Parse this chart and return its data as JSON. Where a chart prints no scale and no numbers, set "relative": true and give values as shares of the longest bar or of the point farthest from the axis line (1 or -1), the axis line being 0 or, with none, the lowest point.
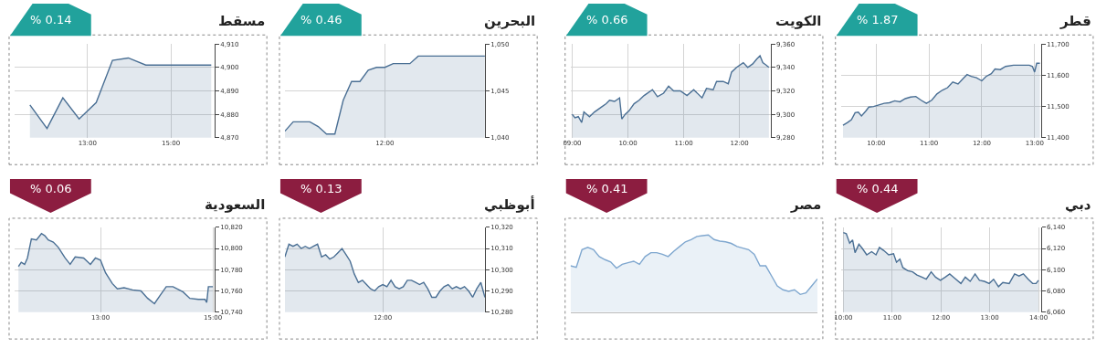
{
  "chart_data": [
    {
      "type": "area",
      "title": "قطر",
      "subtitle": "% 1.87",
      "color": "#4a6f94",
      "grid": true,
      "xlim": [
        9.33,
        13.12
      ],
      "ylim": [
        11400,
        11700
      ],
      "xticks": [
        {
          "value": 10,
          "label": "10:00"
        },
        {
          "value": 11,
          "label": "11:00"
        },
        {
          "value": 12,
          "label": "12:00"
        },
        {
          "value": 13,
          "label": "13:00"
        }
      ],
      "yticks": [
        {
          "value": 11400,
          "label": "11,400"
        },
        {
          "value": 11500,
          "label": "11,500"
        },
        {
          "value": 11600,
          "label": "11,600"
        },
        {
          "value": 11700,
          "label": "11,700"
        }
      ],
      "x": [
        9.37,
        9.45,
        9.53,
        9.6,
        9.66,
        9.72,
        9.8,
        9.86,
        9.95,
        10.05,
        10.15,
        10.25,
        10.35,
        10.45,
        10.55,
        10.65,
        10.75,
        10.85,
        10.95,
        11.05,
        11.15,
        11.25,
        11.35,
        11.45,
        11.55,
        11.65,
        11.72,
        11.8,
        11.9,
        12.0,
        12.08,
        12.18,
        12.25,
        12.35,
        12.45,
        12.6,
        12.75,
        12.9,
        12.96,
        13.0,
        13.04,
        13.1
      ],
      "values": [
        11440,
        11448,
        11458,
        11480,
        11482,
        11470,
        11485,
        11498,
        11500,
        11505,
        11510,
        11512,
        11518,
        11515,
        11525,
        11530,
        11532,
        11520,
        11510,
        11520,
        11540,
        11552,
        11560,
        11578,
        11572,
        11590,
        11602,
        11596,
        11592,
        11582,
        11596,
        11605,
        11620,
        11618,
        11628,
        11632,
        11632,
        11632,
        11628,
        11610,
        11638,
        11638
      ]
    },
    {
      "type": "area",
      "title": "الكويت",
      "subtitle": "% 0.66",
      "color": "#4a6f94",
      "grid": true,
      "xlim": [
        8.97,
        12.56
      ],
      "ylim": [
        9280,
        9360
      ],
      "xticks": [
        {
          "value": 9,
          "label": "09:00"
        },
        {
          "value": 10,
          "label": "10:00"
        },
        {
          "value": 11,
          "label": "11:00"
        },
        {
          "value": 12,
          "label": "12:00"
        }
      ],
      "yticks": [
        {
          "value": 9280,
          "label": "9,280"
        },
        {
          "value": 9300,
          "label": "9,300"
        },
        {
          "value": 9320,
          "label": "9,320"
        },
        {
          "value": 9340,
          "label": "9,340"
        },
        {
          "value": 9360,
          "label": "9,360"
        }
      ],
      "x": [
        9.0,
        9.05,
        9.11,
        9.17,
        9.21,
        9.31,
        9.4,
        9.52,
        9.61,
        9.67,
        9.76,
        9.85,
        9.89,
        9.95,
        10.02,
        10.11,
        10.2,
        10.29,
        10.44,
        10.53,
        10.64,
        10.73,
        10.82,
        10.94,
        11.06,
        11.18,
        11.33,
        11.41,
        11.53,
        11.59,
        11.71,
        11.8,
        11.86,
        11.95,
        12.07,
        12.15,
        12.24,
        12.31,
        12.37,
        12.42,
        12.48,
        12.53
      ],
      "values": [
        9300,
        9297,
        9298,
        9293,
        9302,
        9298,
        9302,
        9306,
        9309,
        9312,
        9311,
        9314,
        9296,
        9300,
        9303,
        9309,
        9312,
        9316,
        9321,
        9315,
        9318,
        9324,
        9320,
        9320,
        9316,
        9321,
        9314,
        9322,
        9321,
        9328,
        9328,
        9326,
        9336,
        9340,
        9344,
        9340,
        9343,
        9347,
        9350,
        9344,
        9342,
        9340
      ]
    },
    {
      "type": "area",
      "title": "البحرين",
      "subtitle": "% 0.46",
      "color": "#4a6f94",
      "grid": true,
      "ylim": [
        1040,
        1050
      ],
      "yticks": [
        {
          "value": 1040,
          "label": "1,040"
        },
        {
          "value": 1045,
          "label": "1,045"
        },
        {
          "value": 1050,
          "label": "1,050"
        }
      ],
      "categories": [
        null,
        null,
        null,
        null,
        null,
        null,
        null,
        null,
        null,
        null,
        null,
        null,
        "12:00",
        null,
        null,
        null,
        null,
        null,
        null,
        null,
        null,
        null,
        null,
        null,
        null
      ],
      "values": [
        1040.7,
        1041.7,
        1041.7,
        1041.7,
        1041.2,
        1040.4,
        1040.4,
        1044.0,
        1046.0,
        1046.0,
        1047.2,
        1047.5,
        1047.5,
        1047.9,
        1047.9,
        1047.9,
        1048.7,
        1048.7,
        1048.7,
        1048.7,
        1048.7,
        1048.7,
        1048.7,
        1048.7,
        1048.7
      ]
    },
    {
      "type": "area",
      "title": "مسقط",
      "subtitle": "% 0.14",
      "color": "#4a6f94",
      "grid": true,
      "xlim": [
        11.25,
        16.05
      ],
      "ylim": [
        4870,
        4910
      ],
      "xticks": [
        {
          "value": 13,
          "label": "13:00"
        },
        {
          "value": 15,
          "label": "15:00"
        }
      ],
      "yticks": [
        {
          "value": 4870,
          "label": "4,870"
        },
        {
          "value": 4880,
          "label": "4,880"
        },
        {
          "value": 4890,
          "label": "4,890"
        },
        {
          "value": 4900,
          "label": "4,900"
        },
        {
          "value": 4910,
          "label": "4,910"
        }
      ],
      "x": [
        11.62,
        12.03,
        12.41,
        12.8,
        13.21,
        13.6,
        13.98,
        14.4,
        15.97
      ],
      "values": [
        4884,
        4874,
        4887,
        4878,
        4885,
        4903,
        4904,
        4901,
        4901
      ]
    },
    {
      "type": "area",
      "title": "دبي",
      "subtitle": "% 0.44",
      "color": "#4a6f94",
      "grid": true,
      "xlim": [
        9.95,
        14.05
      ],
      "ylim": [
        6060,
        6140
      ],
      "xticks": [
        {
          "value": 10,
          "label": "10:00"
        },
        {
          "value": 11,
          "label": "11:00"
        },
        {
          "value": 12,
          "label": "12:00"
        },
        {
          "value": 13,
          "label": "13:00"
        },
        {
          "value": 14,
          "label": "14:00"
        }
      ],
      "yticks": [
        {
          "value": 6060,
          "label": "6,060"
        },
        {
          "value": 6080,
          "label": "6,080"
        },
        {
          "value": 6100,
          "label": "6,100"
        },
        {
          "value": 6120,
          "label": "6,120"
        },
        {
          "value": 6140,
          "label": "6,140"
        }
      ],
      "x": [
        10.0,
        10.06,
        10.13,
        10.19,
        10.24,
        10.32,
        10.39,
        10.48,
        10.58,
        10.67,
        10.74,
        10.83,
        10.93,
        11.03,
        11.09,
        11.16,
        11.22,
        11.32,
        11.42,
        11.51,
        11.61,
        11.7,
        11.8,
        11.89,
        11.99,
        12.09,
        12.18,
        12.28,
        12.41,
        12.5,
        12.6,
        12.7,
        12.79,
        12.89,
        12.99,
        13.08,
        13.18,
        13.27,
        13.4,
        13.51,
        13.6,
        13.69,
        13.79,
        13.88,
        13.95,
        14.0
      ],
      "values": [
        6135,
        6134,
        6125,
        6128,
        6116,
        6124,
        6120,
        6114,
        6117,
        6114,
        6121,
        6118,
        6114,
        6115,
        6107,
        6110,
        6102,
        6099,
        6098,
        6095,
        6093,
        6091,
        6098,
        6093,
        6090,
        6093,
        6096,
        6092,
        6087,
        6093,
        6089,
        6096,
        6090,
        6089,
        6087,
        6091,
        6084,
        6088,
        6087,
        6096,
        6094,
        6096,
        6091,
        6087,
        6087,
        6090
      ]
    },
    {
      "type": "area",
      "title": "مصر",
      "subtitle": "% 0.41",
      "color": "#7fa7cf",
      "relative": true,
      "categories": [
        null,
        null,
        null,
        null,
        null,
        null,
        null,
        null,
        null,
        null,
        null,
        null,
        null,
        null,
        null,
        null,
        null,
        null,
        null,
        null,
        null,
        null,
        null,
        null,
        null,
        null,
        null,
        null,
        null,
        null,
        null,
        null,
        null,
        null,
        null,
        null,
        null,
        null,
        null,
        null,
        null,
        null,
        null,
        null
      ],
      "values": [
        0.6,
        0.58,
        0.81,
        0.84,
        0.81,
        0.72,
        0.68,
        0.65,
        0.57,
        0.62,
        0.64,
        0.66,
        0.62,
        0.72,
        0.77,
        0.77,
        0.75,
        0.72,
        0.79,
        0.85,
        0.91,
        0.94,
        0.98,
        0.99,
        1.0,
        0.94,
        0.92,
        0.91,
        0.89,
        0.85,
        0.83,
        0.81,
        0.75,
        0.6,
        0.6,
        0.47,
        0.34,
        0.29,
        0.27,
        0.29,
        0.23,
        0.25,
        0.34,
        0.43
      ]
    },
    {
      "type": "area",
      "title": "أبوظبي",
      "subtitle": "% 0.13",
      "color": "#4a6f94",
      "grid": true,
      "ylim": [
        10280,
        10320
      ],
      "yticks": [
        {
          "value": 10280,
          "label": "10,280"
        },
        {
          "value": 10290,
          "label": "10,290"
        },
        {
          "value": 10300,
          "label": "10,300"
        },
        {
          "value": 10310,
          "label": "10,310"
        },
        {
          "value": 10320,
          "label": "10,320"
        }
      ],
      "categories": [
        null,
        null,
        null,
        null,
        null,
        null,
        null,
        null,
        null,
        null,
        null,
        null,
        null,
        null,
        null,
        null,
        null,
        null,
        null,
        null,
        null,
        null,
        null,
        null,
        "12:00",
        null,
        null,
        null,
        null,
        null,
        null,
        null,
        null,
        null,
        null,
        null,
        null,
        null,
        null,
        null,
        null,
        null,
        null,
        null,
        null,
        null,
        null,
        null,
        null,
        null
      ],
      "values": [
        10306,
        10312,
        10311,
        10312,
        10310,
        10311,
        10310,
        10311,
        10312,
        10306,
        10307,
        10305,
        10306,
        10308,
        10310,
        10307,
        10304,
        10298,
        10294,
        10295,
        10293,
        10291,
        10290,
        10292,
        10293,
        10292,
        10295,
        10292,
        10291,
        10292,
        10295,
        10295,
        10294,
        10293,
        10294,
        10291,
        10287,
        10287,
        10290,
        10292,
        10293,
        10291,
        10292,
        10291,
        10292,
        10290,
        10287,
        10291,
        10294,
        10287
      ]
    },
    {
      "type": "area",
      "title": "السعودية",
      "subtitle": "% 0.06",
      "color": "#4a6f94",
      "grid": true,
      "xlim": [
        11.47,
        15.03
      ],
      "ylim": [
        10740,
        10820
      ],
      "xticks": [
        {
          "value": 13,
          "label": "13:00"
        },
        {
          "value": 15,
          "label": "15:00"
        }
      ],
      "yticks": [
        {
          "value": 10740,
          "label": "10,740"
        },
        {
          "value": 10760,
          "label": "10,760"
        },
        {
          "value": 10780,
          "label": "10,780"
        },
        {
          "value": 10800,
          "label": "10,800"
        },
        {
          "value": 10820,
          "label": "10,820"
        }
      ],
      "x": [
        11.54,
        11.59,
        11.65,
        11.7,
        11.77,
        11.86,
        11.95,
        12.01,
        12.07,
        12.16,
        12.25,
        12.37,
        12.46,
        12.55,
        12.7,
        12.82,
        12.91,
        13.0,
        13.09,
        13.21,
        13.3,
        13.42,
        13.57,
        13.72,
        13.84,
        13.96,
        14.05,
        14.17,
        14.29,
        14.47,
        14.59,
        14.74,
        14.86,
        14.89,
        14.92,
        15.0
      ],
      "values": [
        10783,
        10787,
        10785,
        10791,
        10809,
        10808,
        10814,
        10812,
        10808,
        10806,
        10801,
        10791,
        10785,
        10792,
        10791,
        10785,
        10791,
        10789,
        10777,
        10767,
        10762,
        10763,
        10761,
        10760,
        10753,
        10748,
        10755,
        10764,
        10764,
        10759,
        10753,
        10752,
        10752,
        10749,
        10764,
        10764
      ]
    }
  ]
}
